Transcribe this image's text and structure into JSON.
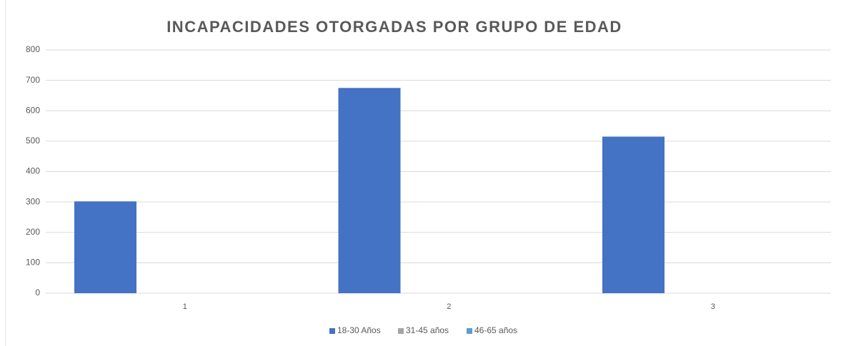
{
  "chart_data": {
    "type": "bar",
    "title": "INCAPACIDADES OTORGADAS POR GRUPO DE EDAD",
    "categories": [
      "1",
      "2",
      "3"
    ],
    "series": [
      {
        "name": "18-30 Años",
        "color": "#4472c4",
        "values": [
          302,
          675,
          515
        ]
      },
      {
        "name": "31-45 años",
        "color": "#a5a5a5",
        "values": [
          null,
          null,
          null
        ]
      },
      {
        "name": "46-65 años",
        "color": "#5b9bd5",
        "values": [
          null,
          null,
          null
        ]
      }
    ],
    "ylim": [
      0,
      800
    ],
    "yticks": [
      0,
      100,
      200,
      300,
      400,
      500,
      600,
      700,
      800
    ],
    "grid": true,
    "legend": "bottom"
  }
}
